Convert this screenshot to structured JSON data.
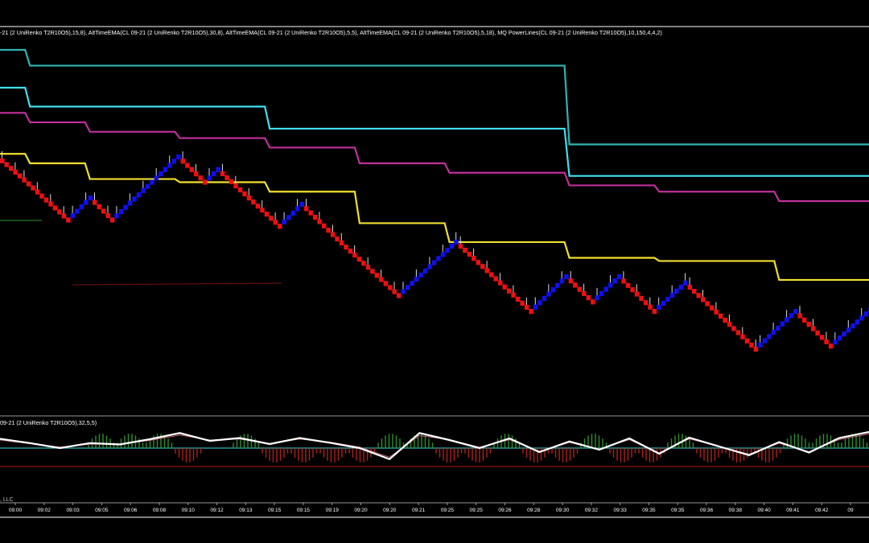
{
  "window": {
    "price_panel_header": "-21 (2 UniRenko T2R10O5),15,8), AltTimeEMA(CL 09-21 (2 UniRenko T2R10O5),30,8), AltTimeEMA(CL 09-21 (2 UniRenko T2R10O5),5,5), AltTimeEMA(CL 09-21 (2 UniRenko T2R10O5),5,18), MQ PowerLines(CL 09-21 (2 UniRenko T2R10O5),10,150,4,4,2)",
    "osc_panel_header": "09-21 (2 UniRenko T2R10O5),32,5,5)",
    "copyright_fragment": ", LLC"
  },
  "colors": {
    "background": "#000000",
    "up_brick": "#1010ee",
    "down_brick": "#ee1010",
    "line_teal": "#2fb3b3",
    "line_cyan": "#3fe0f0",
    "line_magenta": "#c0309a",
    "line_yellow": "#f0e030",
    "osc_main": "#ffffff",
    "osc_signal": "#c06070",
    "hist_pos": "#2f8f2f",
    "hist_neg": "#b02020",
    "zero_line": "#2fb3b3",
    "lower_line": "#b01818"
  },
  "chart_data": {
    "type": "line",
    "title": "",
    "x_ticks": [
      "09:00",
      "09:02",
      "09:03",
      "09:05",
      "09:06",
      "09:08",
      "09:10",
      "09:12",
      "09:13",
      "09:15",
      "09:15",
      "09:19",
      "09:20",
      "09:20",
      "09:21",
      "09:25",
      "09:25",
      "09:26",
      "09:28",
      "09:30",
      "09:32",
      "09:33",
      "09:35",
      "09:35",
      "09:36",
      "09:38",
      "09:40",
      "09:41",
      "09:42",
      "09"
    ],
    "bricks": {
      "description": "renko brick closes, price-panel units (0 = bottom, 100 = top)",
      "up_color": "up",
      "down_color": "down",
      "path": [
        66,
        60,
        46,
        53,
        46,
        66,
        58,
        62,
        44,
        51,
        40,
        22,
        39,
        17,
        28,
        20,
        28,
        17,
        26,
        5,
        17,
        6,
        20,
        5,
        6,
        -7,
        8,
        -6,
        9
      ]
    },
    "series": [
      {
        "key": "teal",
        "values": [
          100,
          95,
          95,
          95,
          95,
          95,
          95,
          95,
          95,
          95,
          95,
          95,
          95,
          95,
          95,
          95,
          95,
          95,
          95,
          70,
          70,
          70,
          70,
          70,
          70,
          70,
          70,
          70,
          70,
          70
        ]
      },
      {
        "key": "cyan",
        "values": [
          88,
          82,
          82,
          82,
          82,
          82,
          82,
          82,
          82,
          75,
          75,
          75,
          75,
          75,
          75,
          75,
          75,
          75,
          75,
          60,
          60,
          60,
          60,
          60,
          60,
          60,
          60,
          60,
          60,
          60
        ]
      },
      {
        "key": "magenta",
        "values": [
          80,
          77,
          77,
          74,
          74,
          74,
          72,
          72,
          72,
          69,
          69,
          69,
          64,
          64,
          64,
          61,
          61,
          61,
          61,
          57,
          57,
          57,
          55,
          55,
          55,
          55,
          52,
          52,
          52,
          52
        ]
      },
      {
        "key": "yellow",
        "values": [
          67,
          64,
          64,
          59,
          59,
          59,
          58,
          58,
          58,
          55,
          55,
          55,
          45,
          45,
          45,
          39,
          39,
          39,
          39,
          34,
          34,
          34,
          33,
          33,
          33,
          33,
          27,
          27,
          27,
          27
        ]
      }
    ],
    "oscillator": {
      "main": [
        46,
        25,
        0,
        25,
        18,
        44,
        75,
        36,
        50,
        20,
        50,
        27,
        0,
        -55,
        75,
        40,
        0,
        48,
        -20,
        33,
        -8,
        48,
        -28,
        52,
        8,
        -35,
        30,
        -22,
        50,
        80
      ],
      "signal": [
        40,
        22,
        5,
        19,
        20,
        38,
        65,
        40,
        45,
        22,
        45,
        30,
        5,
        -45,
        62,
        42,
        5,
        42,
        -15,
        28,
        -5,
        42,
        -24,
        46,
        8,
        -30,
        24,
        -18,
        42,
        70
      ],
      "histogram": [
        0,
        0,
        0,
        1,
        1,
        1,
        -1,
        0,
        1,
        -1,
        -1,
        -1,
        -1,
        1,
        1,
        -1,
        -1,
        1,
        -1,
        -1,
        1,
        -1,
        -1,
        1,
        -1,
        -1,
        -1,
        1,
        1,
        1
      ]
    }
  }
}
